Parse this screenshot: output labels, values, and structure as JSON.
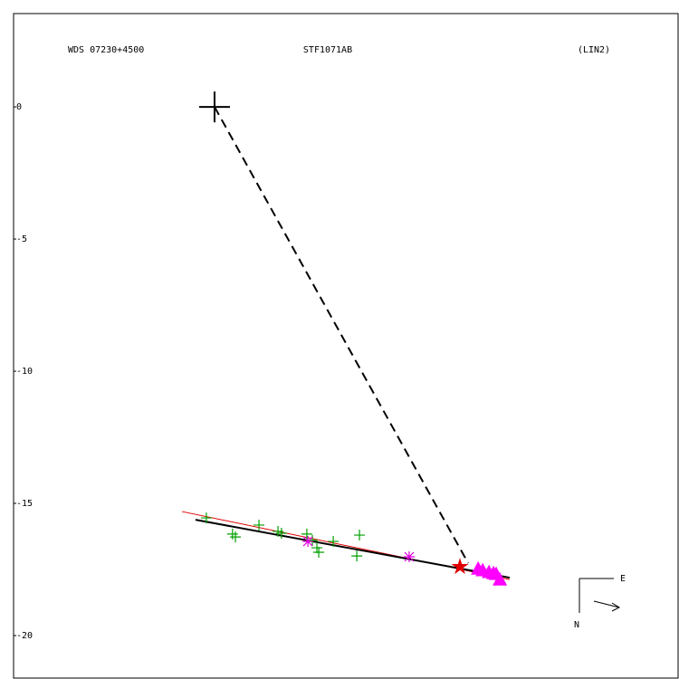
{
  "chart_data": {
    "type": "scatter",
    "wds_id": "WDS 07230+4500",
    "title": "STF1071AB",
    "method": "(LIN2)",
    "compass": {
      "east": "E",
      "north": "N"
    },
    "xlim": [
      -7.6,
      17.53
    ],
    "ylim": [
      -21.61,
      3.53
    ],
    "yticks": [
      0,
      -5,
      -10,
      -15,
      -20
    ],
    "primary": {
      "x": 0,
      "y": 0,
      "color": "#000000"
    },
    "series": [
      {
        "marker": "plus",
        "color": "#00a000",
        "x": [
          -0.31,
          0.68,
          0.79,
          1.68,
          2.4,
          2.53,
          3.49,
          3.7,
          3.87,
          3.94,
          4.49,
          5.48,
          5.38
        ],
        "values": [
          -15.55,
          -16.16,
          -16.27,
          -15.82,
          -16.06,
          -16.13,
          -16.16,
          -16.4,
          -16.68,
          -16.85,
          -16.44,
          -16.2,
          -16.99
        ]
      },
      {
        "marker": "asterisk",
        "color": "#e000e0",
        "x": [
          3.53,
          7.36
        ],
        "values": [
          -16.44,
          -17.02
        ]
      },
      {
        "marker": "star",
        "color": "#e00000",
        "x": [
          9.28
        ],
        "values": [
          -17.4
        ]
      },
      {
        "marker": "triangle",
        "color": "#ff00ff",
        "x": [
          9.97,
          10.14,
          10.38,
          10.55,
          10.65,
          10.79
        ],
        "values": [
          -17.47,
          -17.53,
          -17.6,
          -17.64,
          -17.67,
          -17.88
        ]
      }
    ],
    "lines": [
      {
        "color": "#e00000",
        "width": 1,
        "dashed": false,
        "x": [
          -1.23,
          11.16
        ],
        "values": [
          -15.31,
          -17.88
        ]
      },
      {
        "color": "#000000",
        "width": 2,
        "dashed": false,
        "x": [
          -0.72,
          11.16
        ],
        "values": [
          -15.62,
          -17.81
        ]
      },
      {
        "color": "#000000",
        "width": 2,
        "dashed": true,
        "x": [
          0,
          9.59
        ],
        "values": [
          0,
          -17.26
        ]
      }
    ]
  }
}
